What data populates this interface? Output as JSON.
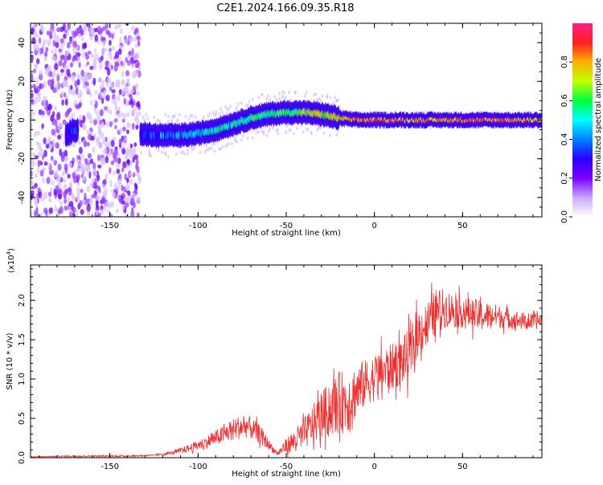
{
  "figure": {
    "title": "C2E1.2024.166.09.35.R18"
  },
  "colorbar": {
    "label": "Normalized spectral amplitude",
    "ticks": [
      "0.0",
      "0.2",
      "0.4",
      "0.6",
      "0.8"
    ],
    "tick_values": [
      0.0,
      0.2,
      0.4,
      0.6,
      0.8
    ],
    "range": [
      0,
      1
    ],
    "colors": [
      "#ffffff",
      "#c9a8ff",
      "#7a00ff",
      "#2a00ff",
      "#0080ff",
      "#00ffff",
      "#00ff40",
      "#c0ff00",
      "#ffb000",
      "#ff2020",
      "#ff1e8a"
    ]
  },
  "chart_data": [
    {
      "type": "heatmap",
      "xlabel": "Height of straight line (km)",
      "ylabel": "Frequency (Hz)",
      "xlim": [
        -195,
        95
      ],
      "ylim": [
        -50,
        50
      ],
      "xticks": [
        -150,
        -100,
        -50,
        0,
        50
      ],
      "xtick_labels": [
        "-150",
        "-100",
        "-50",
        "0",
        "50"
      ],
      "yticks": [
        -40,
        -20,
        0,
        20,
        40
      ],
      "ytick_labels": [
        "-40",
        "-20",
        "0",
        "20",
        "40"
      ],
      "noise_region_x": [
        -195,
        -133
      ],
      "ridge": {
        "x": [
          -175,
          -170,
          -133,
          -125,
          -110,
          -100,
          -90,
          -80,
          -70,
          -60,
          -50,
          -40,
          -30,
          -20,
          -10,
          0,
          20,
          40,
          60,
          80,
          95
        ],
        "y": [
          -8,
          -5,
          -7,
          -8,
          -8,
          -7,
          -5,
          -2,
          1,
          3,
          4,
          4,
          3,
          1,
          0,
          0,
          0,
          0,
          0,
          0,
          0
        ],
        "peak_amplitude": [
          0.3,
          0.35,
          0.35,
          0.4,
          0.45,
          0.5,
          0.55,
          0.55,
          0.6,
          0.6,
          0.65,
          0.7,
          0.75,
          0.8,
          0.9,
          0.95,
          0.9,
          0.9,
          0.9,
          0.9,
          0.9
        ]
      }
    },
    {
      "type": "line",
      "xlabel": "Height of straight line (km)",
      "ylabel": "SNR (10 * v/v)",
      "yscale_label": "(x10",
      "yscale_exp": "4",
      "yscale_suffix": ")",
      "xlim": [
        -195,
        95
      ],
      "ylim": [
        0,
        2.45
      ],
      "xticks": [
        -150,
        -100,
        -50,
        0,
        50
      ],
      "xtick_labels": [
        "-150",
        "-100",
        "-50",
        "0",
        "50"
      ],
      "yticks": [
        0.0,
        0.5,
        1.0,
        1.5,
        2.0
      ],
      "ytick_labels": [
        "0.0",
        "0.5",
        "1.0",
        "1.5",
        "2.0"
      ],
      "color": "#ee3030",
      "series": [
        {
          "x": [
            -195,
            -170,
            -140,
            -125,
            -115,
            -105,
            -95,
            -85,
            -78,
            -72,
            -65,
            -58,
            -55,
            -50,
            -45,
            -40,
            -35,
            -30,
            -25,
            -20,
            -15,
            -10,
            -5,
            0,
            5,
            10,
            15,
            20,
            25,
            30,
            35,
            40,
            50,
            60,
            70,
            80,
            90,
            95
          ],
          "y": [
            0.01,
            0.02,
            0.02,
            0.03,
            0.06,
            0.12,
            0.2,
            0.3,
            0.38,
            0.4,
            0.3,
            0.12,
            0.05,
            0.15,
            0.22,
            0.3,
            0.42,
            0.55,
            0.62,
            0.7,
            0.72,
            0.85,
            0.95,
            1.02,
            1.1,
            1.15,
            1.22,
            1.3,
            1.6,
            1.7,
            1.85,
            1.9,
            1.85,
            1.8,
            1.8,
            1.75,
            1.72,
            1.75
          ],
          "noise_amplitude": [
            0.005,
            0.01,
            0.01,
            0.01,
            0.02,
            0.05,
            0.08,
            0.12,
            0.15,
            0.15,
            0.12,
            0.05,
            0.03,
            0.1,
            0.15,
            0.2,
            0.25,
            0.3,
            0.35,
            0.4,
            0.4,
            0.35,
            0.3,
            0.3,
            0.3,
            0.3,
            0.3,
            0.35,
            0.3,
            0.3,
            0.3,
            0.25,
            0.2,
            0.2,
            0.15,
            0.12,
            0.1,
            0.1
          ]
        }
      ]
    }
  ]
}
